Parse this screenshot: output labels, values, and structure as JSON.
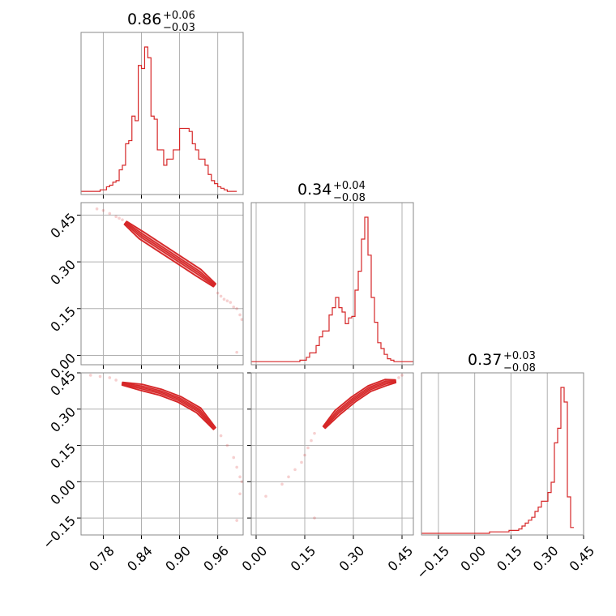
{
  "colors": {
    "series": "#d62728",
    "grid": "#b0b0b0",
    "frame": "#888888"
  },
  "chart_data": {
    "type": "corner",
    "parameters": [
      {
        "title": "0.86",
        "upper": "+0.06",
        "lower": "−0.03",
        "range": [
          0.745,
          1.0
        ],
        "ticks": [
          0.78,
          0.84,
          0.9,
          0.96
        ],
        "tick_labels": [
          "0.78",
          "0.84",
          "0.90",
          "0.96"
        ]
      },
      {
        "title": "0.34",
        "upper": "+0.04",
        "lower": "−0.08",
        "range": [
          -0.015,
          0.485
        ],
        "ticks": [
          0.0,
          0.15,
          0.3,
          0.45
        ],
        "tick_labels": [
          "0.00",
          "0.15",
          "0.30",
          "0.45"
        ]
      },
      {
        "title": "0.37",
        "upper": "+0.03",
        "lower": "−0.08",
        "range": [
          -0.22,
          0.45
        ],
        "ticks": [
          -0.15,
          0.0,
          0.15,
          0.3,
          0.45
        ],
        "tick_labels": [
          "−0.15",
          "0.00",
          "0.15",
          "0.30",
          "0.45"
        ]
      }
    ],
    "histograms": [
      {
        "param": 0,
        "start": 0.745,
        "step": 0.005,
        "counts": [
          1,
          1,
          1,
          1,
          1,
          1,
          2,
          2,
          4,
          5,
          7,
          8,
          15,
          18,
          32,
          34,
          50,
          47,
          83,
          81,
          95,
          88,
          50,
          48,
          28,
          28,
          18,
          22,
          22,
          28,
          28,
          42,
          42,
          42,
          40,
          32,
          28,
          22,
          22,
          18,
          12,
          8,
          6,
          4,
          3,
          2,
          1,
          1,
          1
        ]
      },
      {
        "param": 1,
        "start": -0.015,
        "step": 0.01,
        "counts": [
          1,
          1,
          1,
          1,
          1,
          1,
          1,
          1,
          1,
          1,
          1,
          1,
          1,
          1,
          1,
          2,
          2,
          4,
          7,
          7,
          12,
          18,
          22,
          22,
          33,
          38,
          45,
          38,
          35,
          27,
          31,
          32,
          50,
          63,
          85,
          100,
          74,
          45,
          28,
          14,
          10,
          6,
          3,
          2,
          1,
          1,
          1,
          1,
          1,
          1
        ]
      },
      {
        "param": 2,
        "start": -0.22,
        "step": 0.0134,
        "counts": [
          0,
          0,
          0,
          0,
          0,
          0,
          0,
          0,
          0,
          0,
          0,
          0,
          0,
          0,
          0,
          0,
          0,
          0,
          0,
          0,
          0,
          1,
          1,
          1,
          1,
          1,
          1,
          2,
          2,
          2,
          3,
          5,
          7,
          9,
          11,
          15,
          18,
          22,
          22,
          28,
          35,
          62,
          72,
          100,
          90,
          25,
          4
        ]
      }
    ],
    "pairs": [
      {
        "x_param": 0,
        "y_param": 1,
        "y_range": [
          -0.03,
          0.49
        ],
        "y_ticks": [
          0.0,
          0.15,
          0.3,
          0.45
        ],
        "y_tick_labels": [
          "0.00",
          "0.15",
          "0.30",
          "0.45"
        ],
        "ridge": [
          [
            0.815,
            0.425
          ],
          [
            0.84,
            0.385
          ],
          [
            0.87,
            0.345
          ],
          [
            0.9,
            0.305
          ],
          [
            0.93,
            0.265
          ],
          [
            0.955,
            0.225
          ]
        ],
        "outer_halfwidth": 0.013,
        "inner_halfwidth": 0.006,
        "scatter": [
          [
            0.77,
            0.47
          ],
          [
            0.78,
            0.465
          ],
          [
            0.79,
            0.455
          ],
          [
            0.8,
            0.445
          ],
          [
            0.805,
            0.44
          ],
          [
            0.81,
            0.435
          ],
          [
            0.96,
            0.2
          ],
          [
            0.965,
            0.19
          ],
          [
            0.97,
            0.18
          ],
          [
            0.975,
            0.175
          ],
          [
            0.98,
            0.17
          ],
          [
            0.985,
            0.155
          ],
          [
            0.99,
            0.15
          ],
          [
            0.995,
            0.13
          ],
          [
            0.998,
            0.115
          ],
          [
            0.99,
            0.01
          ]
        ]
      },
      {
        "x_param": 0,
        "y_param": 2,
        "y_range": [
          -0.22,
          0.45
        ],
        "y_ticks": [
          -0.15,
          0.0,
          0.15,
          0.3,
          0.45
        ],
        "y_tick_labels": [
          "−0.15",
          "0.00",
          "0.15",
          "0.30",
          "0.45"
        ],
        "ridge": [
          [
            0.81,
            0.405
          ],
          [
            0.84,
            0.39
          ],
          [
            0.87,
            0.37
          ],
          [
            0.9,
            0.34
          ],
          [
            0.93,
            0.295
          ],
          [
            0.955,
            0.22
          ]
        ],
        "outer_halfwidth": 0.013,
        "inner_halfwidth": 0.006,
        "scatter": [
          [
            0.76,
            0.44
          ],
          [
            0.775,
            0.435
          ],
          [
            0.79,
            0.43
          ],
          [
            0.8,
            0.42
          ],
          [
            0.965,
            0.19
          ],
          [
            0.975,
            0.15
          ],
          [
            0.985,
            0.1
          ],
          [
            0.99,
            0.06
          ],
          [
            0.995,
            0.02
          ],
          [
            0.998,
            0.0
          ],
          [
            0.995,
            -0.05
          ],
          [
            0.99,
            -0.16
          ]
        ]
      },
      {
        "x_param": 1,
        "y_param": 2,
        "y_range": [
          -0.22,
          0.45
        ],
        "y_ticks": [
          -0.15,
          0.0,
          0.15,
          0.3,
          0.45
        ],
        "y_tick_labels": [
          "−0.15",
          "0.00",
          "0.15",
          "0.30",
          "0.45"
        ],
        "ridge": [
          [
            0.21,
            0.225
          ],
          [
            0.25,
            0.285
          ],
          [
            0.3,
            0.34
          ],
          [
            0.35,
            0.385
          ],
          [
            0.4,
            0.41
          ],
          [
            0.43,
            0.415
          ]
        ],
        "outer_halfwidth": 0.013,
        "inner_halfwidth": 0.006,
        "scatter": [
          [
            0.18,
            0.2
          ],
          [
            0.17,
            0.17
          ],
          [
            0.16,
            0.14
          ],
          [
            0.15,
            0.11
          ],
          [
            0.14,
            0.08
          ],
          [
            0.12,
            0.05
          ],
          [
            0.1,
            0.02
          ],
          [
            0.08,
            -0.01
          ],
          [
            0.03,
            -0.06
          ],
          [
            0.18,
            -0.15
          ],
          [
            0.44,
            0.43
          ],
          [
            0.45,
            0.44
          ]
        ]
      }
    ]
  }
}
